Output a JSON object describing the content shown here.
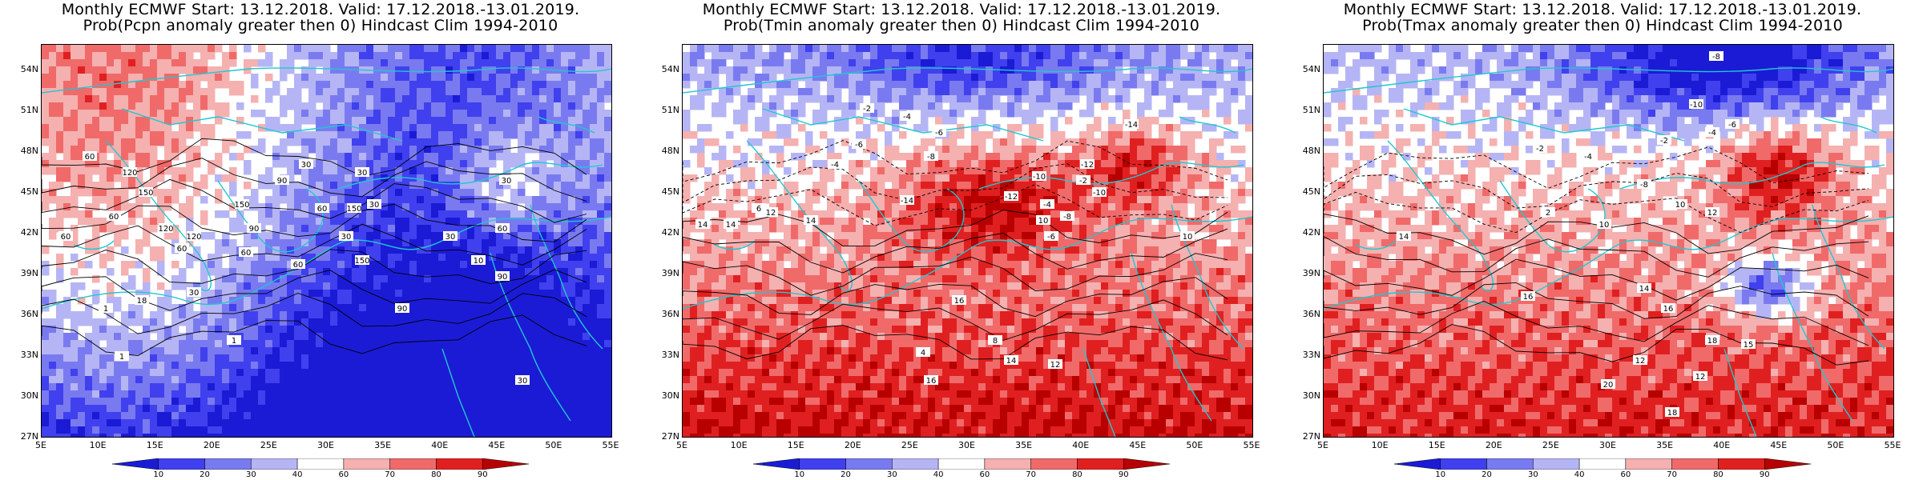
{
  "panels": [
    {
      "title_line1": "Monthly ECMWF Start: 13.12.2018. Valid: 17.12.2018.-13.01.2019.",
      "title_line2": "Prob(Pcpn anomaly greater then 0) Hindcast Clim 1994-2010",
      "contour_labels": [
        "60",
        "30",
        "120",
        "150",
        "60",
        "90",
        "30",
        "120",
        "60",
        "90",
        "60",
        "120",
        "150",
        "60",
        "30",
        "60",
        "30",
        "1",
        "90",
        "30",
        "18",
        "30",
        "60",
        "150",
        "10",
        "150",
        "90",
        "60",
        "30",
        "30",
        "1",
        "1"
      ]
    },
    {
      "title_line1": "Monthly ECMWF Start: 13.12.2018. Valid: 17.12.2018.-13.01.2019.",
      "title_line2": "Prob(Tmin anomaly greater then 0) Hindcast Clim 1994-2010",
      "contour_labels": [
        "-14",
        "-2",
        "-6",
        "-4",
        "-8",
        "-4",
        "-6",
        "-10",
        "-12",
        "-14",
        "-2",
        "-10",
        "-12",
        "-4",
        "-8",
        "-6",
        "10",
        "14",
        "12",
        "10",
        "14",
        "16",
        "14",
        "12",
        "6",
        "14",
        "16",
        "4",
        "8"
      ]
    },
    {
      "title_line1": "Monthly ECMWF Start: 13.12.2018. Valid: 17.12.2018.-13.01.2019.",
      "title_line2": "Prob(Tmax anomaly greater then 0) Hindcast Clim 1994-2010",
      "contour_labels": [
        "-8",
        "-10",
        "-6",
        "-4",
        "-2",
        "-2",
        "-4",
        "-8",
        "2",
        "10",
        "12",
        "14",
        "16",
        "10",
        "14",
        "16",
        "18",
        "12",
        "15",
        "20",
        "12",
        "18"
      ]
    }
  ],
  "lat_labels": [
    "54N",
    "51N",
    "48N",
    "45N",
    "42N",
    "39N",
    "36N",
    "33N",
    "30N",
    "27N"
  ],
  "lon_labels": [
    "5E",
    "10E",
    "15E",
    "20E",
    "25E",
    "30E",
    "35E",
    "40E",
    "45E",
    "50E",
    "55E"
  ],
  "colorbar_labels": [
    "10",
    "20",
    "30",
    "40",
    "60",
    "70",
    "80",
    "90"
  ],
  "colorbar_colors": [
    "#1b1bd6",
    "#4040ee",
    "#7a7af0",
    "#b5b5f5",
    "#ffffff",
    "#f5b0b0",
    "#f06a6a",
    "#e02020",
    "#b80000"
  ]
}
